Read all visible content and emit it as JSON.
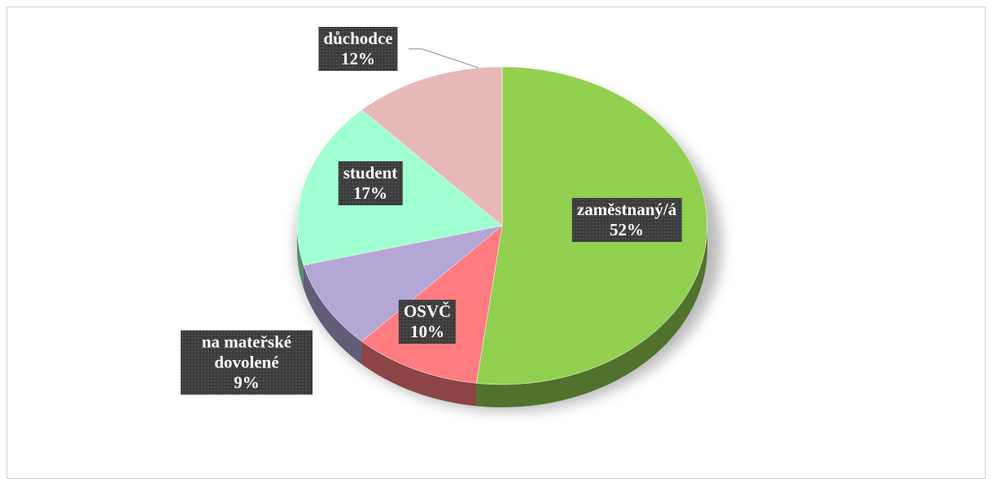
{
  "chart_data": {
    "type": "pie",
    "categories": [
      "zaměstnaný/á",
      "OSVČ",
      "na mateřské dovolené",
      "student",
      "důchodce"
    ],
    "values": [
      52,
      10,
      9,
      17,
      12
    ],
    "value_labels": [
      "52%",
      "10%",
      "9%",
      "17%",
      "12%"
    ],
    "colors": [
      "#92d050",
      "#ff7c80",
      "#b4a7d6",
      "#a0ffd0",
      "#e6b9b8"
    ]
  }
}
